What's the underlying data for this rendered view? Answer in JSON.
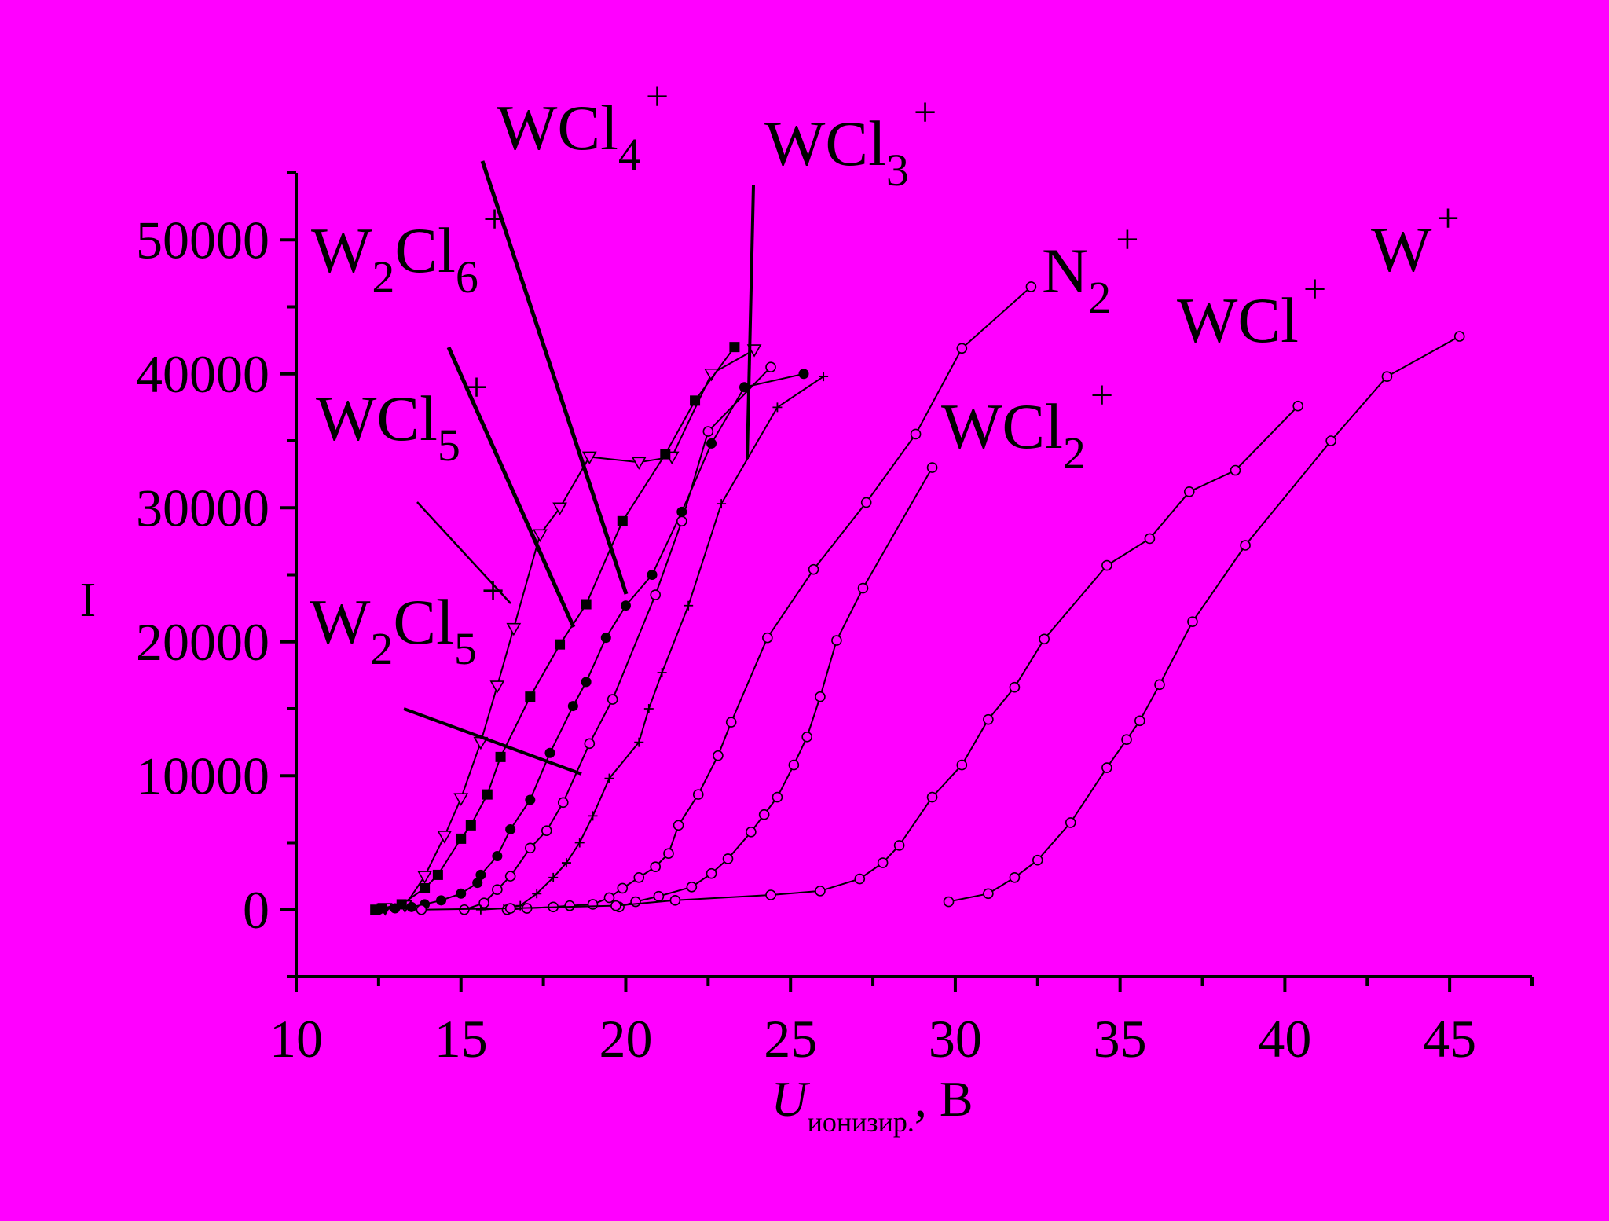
{
  "colors": {
    "background": "#ff00ff",
    "ink": "#000000"
  },
  "chart_data": {
    "type": "line",
    "title": "",
    "ylabel": "I",
    "xlabel": {
      "main": "U",
      "sub": "ионизир.",
      "suffix": ", В"
    },
    "xlim": [
      10,
      47.5
    ],
    "ylim": [
      -5000,
      55000
    ],
    "xticks": [
      10,
      15,
      20,
      25,
      30,
      35,
      40,
      45
    ],
    "yticks": [
      0,
      10000,
      20000,
      30000,
      40000,
      50000
    ],
    "xtick_labels": [
      "10",
      "15",
      "20",
      "25",
      "30",
      "35",
      "40",
      "45"
    ],
    "ytick_labels": [
      "0",
      "10000",
      "20000",
      "30000",
      "40000",
      "50000"
    ],
    "grid": false,
    "series": [
      {
        "name": "W2Cl6+",
        "marker": "triangle-open",
        "points": [
          [
            12.7,
            100
          ],
          [
            13.3,
            300
          ],
          [
            13.9,
            2500
          ],
          [
            14.5,
            5500
          ],
          [
            15.0,
            8300
          ],
          [
            15.6,
            12500
          ],
          [
            16.1,
            16700
          ],
          [
            16.6,
            21000
          ],
          [
            17.4,
            28000
          ],
          [
            18.0,
            30000
          ],
          [
            18.9,
            33800
          ],
          [
            20.4,
            33400
          ],
          [
            21.4,
            33800
          ],
          [
            22.6,
            40000
          ],
          [
            23.9,
            41800
          ]
        ]
      },
      {
        "name": "W2Cl5+",
        "marker": "square-filled",
        "points": [
          [
            12.4,
            0
          ],
          [
            12.6,
            100
          ],
          [
            13.2,
            400
          ],
          [
            13.9,
            1600
          ],
          [
            14.3,
            2600
          ],
          [
            15.0,
            5300
          ],
          [
            15.3,
            6300
          ],
          [
            15.8,
            8600
          ],
          [
            16.2,
            11400
          ],
          [
            17.1,
            15900
          ],
          [
            18.0,
            19800
          ],
          [
            18.8,
            22800
          ],
          [
            19.9,
            29000
          ],
          [
            21.2,
            34000
          ],
          [
            22.1,
            38000
          ],
          [
            23.3,
            42000
          ]
        ]
      },
      {
        "name": "WCl5+",
        "marker": "circle-filled",
        "points": [
          [
            12.5,
            0
          ],
          [
            13.0,
            100
          ],
          [
            13.5,
            200
          ],
          [
            13.9,
            400
          ],
          [
            14.4,
            700
          ],
          [
            15.0,
            1200
          ],
          [
            15.5,
            2000
          ],
          [
            15.6,
            2600
          ],
          [
            16.1,
            4000
          ],
          [
            16.5,
            6000
          ],
          [
            17.1,
            8200
          ],
          [
            17.7,
            11700
          ],
          [
            18.4,
            15200
          ],
          [
            18.8,
            17000
          ],
          [
            19.4,
            20300
          ],
          [
            20.0,
            22700
          ],
          [
            20.8,
            25000
          ],
          [
            21.7,
            29700
          ],
          [
            22.6,
            34800
          ],
          [
            23.6,
            39000
          ],
          [
            25.4,
            40000
          ]
        ]
      },
      {
        "name": "WCl4+",
        "marker": "circle-open",
        "points": [
          [
            15.1,
            0
          ],
          [
            15.7,
            500
          ],
          [
            16.1,
            1500
          ],
          [
            16.5,
            2500
          ],
          [
            17.1,
            4600
          ],
          [
            17.6,
            5900
          ],
          [
            18.1,
            8000
          ],
          [
            18.9,
            12400
          ],
          [
            19.6,
            15700
          ],
          [
            20.9,
            23500
          ],
          [
            21.7,
            29000
          ],
          [
            22.5,
            35700
          ],
          [
            24.4,
            40500
          ]
        ]
      },
      {
        "name": "WCl3+",
        "marker": "plus",
        "points": [
          [
            15.6,
            0
          ],
          [
            16.3,
            100
          ],
          [
            16.8,
            300
          ],
          [
            17.3,
            1200
          ],
          [
            17.8,
            2400
          ],
          [
            18.2,
            3500
          ],
          [
            18.6,
            5000
          ],
          [
            19.0,
            7000
          ],
          [
            19.5,
            9800
          ],
          [
            20.4,
            12500
          ],
          [
            20.7,
            15000
          ],
          [
            21.1,
            17700
          ],
          [
            21.9,
            22700
          ],
          [
            22.9,
            30300
          ],
          [
            24.6,
            37500
          ],
          [
            26.0,
            39800
          ]
        ]
      },
      {
        "name": "WCl2+",
        "marker": "circle-open",
        "points": [
          [
            16.4,
            0
          ],
          [
            17.0,
            100
          ],
          [
            17.8,
            200
          ],
          [
            18.3,
            300
          ],
          [
            19.0,
            400
          ],
          [
            19.5,
            900
          ],
          [
            19.9,
            1600
          ],
          [
            20.4,
            2400
          ],
          [
            20.9,
            3200
          ],
          [
            21.3,
            4200
          ],
          [
            21.6,
            6300
          ],
          [
            22.2,
            8600
          ],
          [
            22.8,
            11500
          ],
          [
            23.2,
            14000
          ],
          [
            24.3,
            20300
          ],
          [
            25.7,
            25400
          ],
          [
            27.3,
            30400
          ],
          [
            28.8,
            35500
          ],
          [
            30.2,
            41900
          ],
          [
            32.3,
            46500
          ]
        ]
      },
      {
        "name": "N2+",
        "marker": "circle-open",
        "points": [
          [
            19.8,
            200
          ],
          [
            20.3,
            600
          ],
          [
            21.0,
            1000
          ],
          [
            22.0,
            1700
          ],
          [
            22.6,
            2700
          ],
          [
            23.1,
            3800
          ],
          [
            23.8,
            5800
          ],
          [
            24.2,
            7100
          ],
          [
            24.6,
            8400
          ],
          [
            25.1,
            10800
          ],
          [
            25.5,
            12900
          ],
          [
            25.9,
            15900
          ],
          [
            26.4,
            20100
          ],
          [
            27.2,
            24000
          ],
          [
            29.3,
            33000
          ]
        ]
      },
      {
        "name": "WCl+",
        "marker": "circle-open",
        "points": [
          [
            13.8,
            0
          ],
          [
            16.5,
            100
          ],
          [
            19.7,
            300
          ],
          [
            21.5,
            700
          ],
          [
            24.4,
            1100
          ],
          [
            25.9,
            1400
          ],
          [
            27.1,
            2300
          ],
          [
            27.8,
            3500
          ],
          [
            28.3,
            4800
          ],
          [
            29.3,
            8400
          ],
          [
            30.2,
            10800
          ],
          [
            31.0,
            14200
          ],
          [
            31.8,
            16600
          ],
          [
            32.7,
            20200
          ],
          [
            34.6,
            25700
          ],
          [
            35.9,
            27700
          ],
          [
            37.1,
            31200
          ],
          [
            38.5,
            32800
          ],
          [
            40.4,
            37600
          ]
        ]
      },
      {
        "name": "W+",
        "marker": "circle-open",
        "points": [
          [
            29.8,
            600
          ],
          [
            31.0,
            1200
          ],
          [
            31.8,
            2400
          ],
          [
            32.5,
            3700
          ],
          [
            33.5,
            6500
          ],
          [
            34.6,
            10600
          ],
          [
            35.2,
            12700
          ],
          [
            35.6,
            14100
          ],
          [
            36.2,
            16800
          ],
          [
            37.2,
            21500
          ],
          [
            38.8,
            27200
          ],
          [
            41.4,
            35000
          ],
          [
            43.1,
            39800
          ],
          [
            45.3,
            42800
          ]
        ]
      }
    ],
    "annotations": [
      {
        "id": "w2cl6",
        "parts": [
          [
            "W",
            ""
          ],
          [
            "2",
            "sub"
          ],
          [
            "Cl",
            ""
          ],
          [
            "6",
            "sub"
          ],
          [
            "+",
            "sup"
          ]
        ]
      },
      {
        "id": "wcl4",
        "parts": [
          [
            "WCl",
            ""
          ],
          [
            "4",
            "sub"
          ],
          [
            "+",
            "sup"
          ]
        ]
      },
      {
        "id": "wcl3",
        "parts": [
          [
            "WCl",
            ""
          ],
          [
            "3",
            "sub"
          ],
          [
            "+",
            "sup"
          ]
        ]
      },
      {
        "id": "wcl5",
        "parts": [
          [
            "WCl",
            ""
          ],
          [
            "5",
            "sub"
          ],
          [
            "+",
            "sup"
          ]
        ]
      },
      {
        "id": "w2cl5",
        "parts": [
          [
            "W",
            ""
          ],
          [
            "2",
            "sub"
          ],
          [
            "Cl",
            ""
          ],
          [
            "5",
            "sub"
          ],
          [
            "+",
            "sup"
          ]
        ]
      },
      {
        "id": "n2",
        "parts": [
          [
            "N",
            ""
          ],
          [
            "2",
            "sub"
          ],
          [
            "+",
            "sup"
          ]
        ]
      },
      {
        "id": "wcl2",
        "parts": [
          [
            "WCl",
            ""
          ],
          [
            "2",
            "sub"
          ],
          [
            "+",
            "sup"
          ]
        ]
      },
      {
        "id": "wcl",
        "parts": [
          [
            "WCl",
            ""
          ],
          [
            "+",
            "sup"
          ]
        ]
      },
      {
        "id": "w",
        "parts": [
          [
            "W",
            ""
          ],
          [
            "+",
            "sup"
          ]
        ]
      }
    ]
  }
}
